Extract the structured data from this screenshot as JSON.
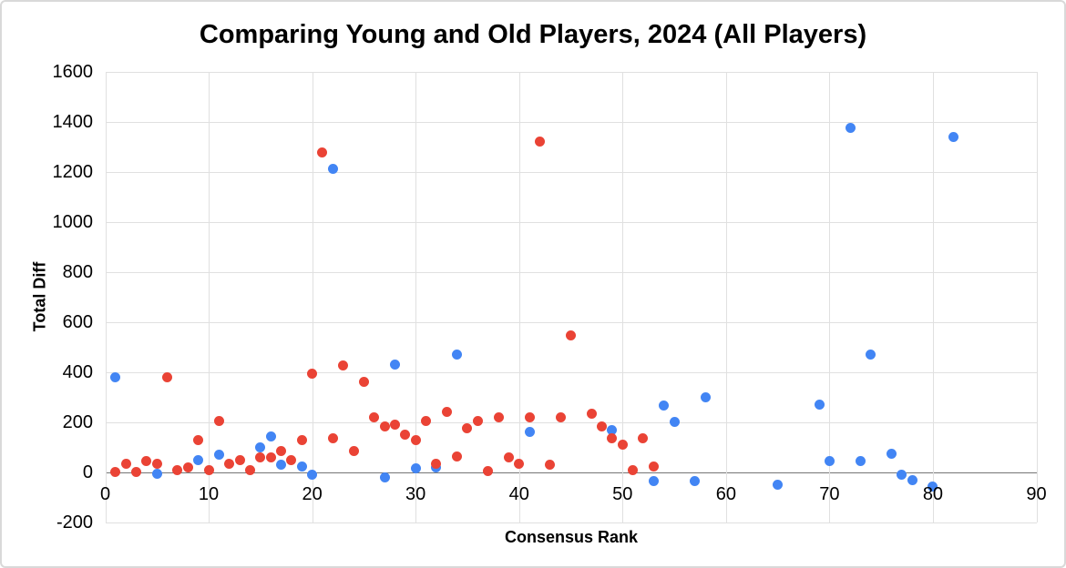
{
  "chart_data": {
    "type": "scatter",
    "title": "Comparing Young and Old Players, 2024 (All Players)",
    "xlabel": "Consensus Rank",
    "ylabel": "Total Diff",
    "xlim": [
      0,
      90
    ],
    "ylim": [
      -200,
      1600
    ],
    "x_ticks": [
      0,
      10,
      20,
      30,
      40,
      50,
      60,
      70,
      80,
      90
    ],
    "y_ticks": [
      1600,
      1400,
      1200,
      1000,
      800,
      600,
      400,
      200,
      0,
      -200
    ],
    "grid": true,
    "legend_position": "none",
    "series": [
      {
        "name": "blue",
        "color": "#4285F4",
        "points": [
          [
            1,
            380
          ],
          [
            5,
            -5
          ],
          [
            9,
            50
          ],
          [
            11,
            70
          ],
          [
            15,
            100
          ],
          [
            16,
            145
          ],
          [
            17,
            30
          ],
          [
            19,
            25
          ],
          [
            20,
            -10
          ],
          [
            22,
            1210
          ],
          [
            27,
            -20
          ],
          [
            28,
            430
          ],
          [
            30,
            15
          ],
          [
            32,
            20
          ],
          [
            34,
            470
          ],
          [
            41,
            160
          ],
          [
            49,
            170
          ],
          [
            53,
            -35
          ],
          [
            54,
            265
          ],
          [
            55,
            200
          ],
          [
            57,
            -35
          ],
          [
            58,
            300
          ],
          [
            65,
            -50
          ],
          [
            69,
            270
          ],
          [
            70,
            45
          ],
          [
            72,
            1375
          ],
          [
            73,
            45
          ],
          [
            74,
            470
          ],
          [
            76,
            75
          ],
          [
            77,
            -10
          ],
          [
            78,
            -30
          ],
          [
            80,
            -55
          ],
          [
            82,
            1340
          ]
        ]
      },
      {
        "name": "red",
        "color": "#EA4335",
        "points": [
          [
            1,
            0
          ],
          [
            2,
            35
          ],
          [
            3,
            0
          ],
          [
            4,
            45
          ],
          [
            5,
            35
          ],
          [
            6,
            380
          ],
          [
            7,
            10
          ],
          [
            8,
            20
          ],
          [
            9,
            130
          ],
          [
            10,
            10
          ],
          [
            11,
            205
          ],
          [
            12,
            35
          ],
          [
            13,
            50
          ],
          [
            14,
            10
          ],
          [
            15,
            60
          ],
          [
            16,
            60
          ],
          [
            17,
            85
          ],
          [
            18,
            50
          ],
          [
            19,
            130
          ],
          [
            20,
            395
          ],
          [
            21,
            1275
          ],
          [
            22,
            135
          ],
          [
            23,
            425
          ],
          [
            24,
            85
          ],
          [
            25,
            360
          ],
          [
            26,
            220
          ],
          [
            27,
            185
          ],
          [
            28,
            190
          ],
          [
            29,
            150
          ],
          [
            30,
            130
          ],
          [
            31,
            205
          ],
          [
            32,
            35
          ],
          [
            33,
            240
          ],
          [
            34,
            65
          ],
          [
            35,
            175
          ],
          [
            36,
            205
          ],
          [
            37,
            5
          ],
          [
            38,
            220
          ],
          [
            39,
            60
          ],
          [
            40,
            35
          ],
          [
            41,
            220
          ],
          [
            42,
            1320
          ],
          [
            43,
            30
          ],
          [
            44,
            220
          ],
          [
            45,
            545
          ],
          [
            47,
            235
          ],
          [
            48,
            185
          ],
          [
            49,
            135
          ],
          [
            50,
            110
          ],
          [
            51,
            10
          ],
          [
            52,
            135
          ],
          [
            53,
            25
          ]
        ]
      }
    ]
  },
  "colors": {
    "background": "#ffffff",
    "card_border": "#d9d9d9",
    "gridline": "#e0e0e0",
    "zero_axis_line": "#757575",
    "text": "#000000",
    "series_blue": "#4285F4",
    "series_red": "#EA4335"
  }
}
